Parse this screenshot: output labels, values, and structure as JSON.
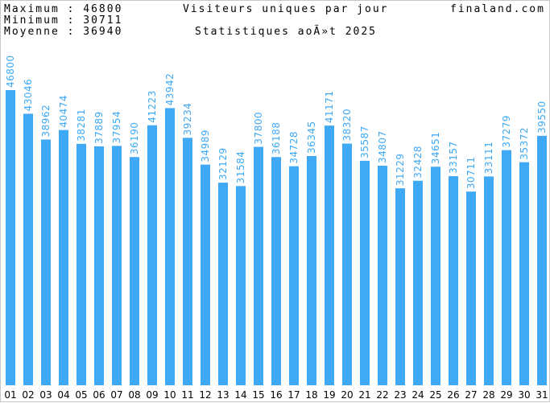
{
  "header": {
    "max_label": "Maximum : 46800",
    "min_label": "Minimum : 30711",
    "avg_label": "Moyenne : 36940",
    "title": "Visiteurs uniques par jour",
    "subtitle": "Statistiques aoÃ»t 2025",
    "site": "finaland.com"
  },
  "colors": {
    "bar": "#3fa9f5",
    "text": "#000000"
  },
  "chart_data": {
    "type": "bar",
    "title": "Visiteurs uniques par jour",
    "subtitle": "Statistiques aoÃ»t 2025",
    "categories": [
      "01",
      "02",
      "03",
      "04",
      "05",
      "06",
      "07",
      "08",
      "09",
      "10",
      "11",
      "12",
      "13",
      "14",
      "15",
      "16",
      "17",
      "18",
      "19",
      "20",
      "21",
      "22",
      "23",
      "24",
      "25",
      "26",
      "27",
      "28",
      "29",
      "30",
      "31"
    ],
    "values": [
      46800,
      43046,
      38962,
      40474,
      38281,
      37889,
      37954,
      36190,
      41223,
      43942,
      39234,
      34989,
      32129,
      31584,
      37800,
      36188,
      34728,
      36345,
      41171,
      38320,
      35587,
      34807,
      31229,
      32428,
      34651,
      33157,
      30711,
      33111,
      37279,
      35372,
      39550
    ],
    "ylim": [
      0,
      46800
    ],
    "grid": false,
    "legend": "none",
    "data_labels": true
  }
}
